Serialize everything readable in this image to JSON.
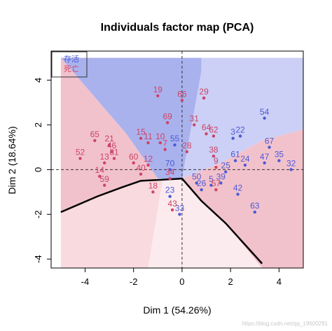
{
  "chart_data": {
    "type": "scatter",
    "title": "Individuals factor map (PCA)",
    "xlabel": "Dim 1 (54.26%)",
    "ylabel": "Dim 2 (18.64%)",
    "xlim": [
      -5.4,
      5.0
    ],
    "ylim": [
      -4.4,
      5.3
    ],
    "x_ticks": [
      -4,
      -2,
      0,
      2,
      4
    ],
    "y_ticks": [
      -4,
      -2,
      0,
      2,
      4
    ],
    "grid": false,
    "reference_lines": {
      "x": 0,
      "y": 0,
      "style": "dashed"
    },
    "legend": {
      "placement": "top-left",
      "entries": [
        {
          "label": "存活",
          "color": "#4a5ad6"
        },
        {
          "label": "死亡",
          "color": "#cc4466"
        }
      ]
    },
    "decision_boundary": {
      "color": "#000000",
      "points": [
        [
          -5.0,
          -1.9
        ],
        [
          -3.5,
          -1.2
        ],
        [
          -2.5,
          -0.8
        ],
        [
          -1.7,
          -0.5
        ],
        [
          -0.8,
          -0.45
        ],
        [
          0.0,
          -0.4
        ],
        [
          0.8,
          -1.4
        ],
        [
          1.8,
          -2.4
        ],
        [
          3.3,
          -4.2
        ]
      ]
    },
    "background_regions": [
      {
        "name": "region-blue-top",
        "color": "#aab2ee",
        "points": [
          [
            -5.0,
            5.0
          ],
          [
            0.8,
            5.0
          ],
          [
            0.8,
            4.4
          ],
          [
            0.0,
            -0.4
          ],
          [
            -1.0,
            -0.4
          ],
          [
            -2.3,
            1.6
          ]
        ]
      },
      {
        "name": "region-blue-right",
        "color": "#ccd0f6",
        "points": [
          [
            0.8,
            5.0
          ],
          [
            5.0,
            5.0
          ],
          [
            5.0,
            1.8
          ],
          [
            3.3,
            1.3
          ],
          [
            1.6,
            0.3
          ],
          [
            0.0,
            -0.4
          ],
          [
            0.8,
            4.4
          ]
        ]
      },
      {
        "name": "region-red-left",
        "color": "#f2c2cc",
        "points": [
          [
            -5.0,
            5.0
          ],
          [
            -2.3,
            1.6
          ],
          [
            -1.0,
            -0.4
          ],
          [
            -2.5,
            -0.8
          ],
          [
            -3.5,
            -1.2
          ],
          [
            -5.0,
            -1.9
          ]
        ]
      },
      {
        "name": "region-red-right",
        "color": "#f2c2cc",
        "points": [
          [
            0.0,
            -0.4
          ],
          [
            1.6,
            0.3
          ],
          [
            3.3,
            1.3
          ],
          [
            5.0,
            1.8
          ],
          [
            5.0,
            -4.5
          ],
          [
            3.3,
            -4.5
          ]
        ]
      },
      {
        "name": "region-pink-bottom-left",
        "color": "#f8dadf",
        "points": [
          [
            -5.0,
            -1.9
          ],
          [
            -3.5,
            -1.2
          ],
          [
            -2.5,
            -0.8
          ],
          [
            -1.7,
            -0.5
          ],
          [
            -0.8,
            -0.45
          ],
          [
            -1.4,
            -4.5
          ],
          [
            -5.0,
            -4.5
          ]
        ]
      },
      {
        "name": "region-lightpink-bottom",
        "color": "#fcebee",
        "points": [
          [
            -0.8,
            -0.45
          ],
          [
            0.0,
            -0.4
          ],
          [
            0.8,
            -1.4
          ],
          [
            1.8,
            -2.4
          ],
          [
            3.3,
            -4.5
          ],
          [
            -1.4,
            -4.5
          ]
        ]
      }
    ],
    "series": [
      {
        "name": "存活",
        "color": "#4a5ad6",
        "points": [
          {
            "label": "54",
            "x": 3.4,
            "y": 2.3
          },
          {
            "label": "3",
            "x": 2.1,
            "y": 1.4
          },
          {
            "label": "22",
            "x": 2.4,
            "y": 1.5
          },
          {
            "label": "67",
            "x": 3.6,
            "y": 1.0
          },
          {
            "label": "47",
            "x": 3.4,
            "y": 0.3
          },
          {
            "label": "35",
            "x": 4.0,
            "y": 0.4
          },
          {
            "label": "32",
            "x": 4.5,
            "y": 0.0
          },
          {
            "label": "61",
            "x": 2.2,
            "y": 0.4
          },
          {
            "label": "24",
            "x": 2.6,
            "y": 0.2
          },
          {
            "label": "25",
            "x": 1.8,
            "y": -0.1
          },
          {
            "label": "39",
            "x": 1.6,
            "y": -0.6
          },
          {
            "label": "42",
            "x": 2.3,
            "y": -1.1
          },
          {
            "label": "63",
            "x": 3.0,
            "y": -1.9
          },
          {
            "label": "50",
            "x": 0.6,
            "y": -0.6
          },
          {
            "label": "26",
            "x": 0.8,
            "y": -0.9
          },
          {
            "label": "23",
            "x": -0.5,
            "y": -1.2
          },
          {
            "label": "33",
            "x": -0.1,
            "y": -2.0
          },
          {
            "label": "70",
            "x": -0.5,
            "y": 0.0
          },
          {
            "label": "55",
            "x": -0.3,
            "y": 1.1
          },
          {
            "label": "5",
            "x": 1.2,
            "y": -0.7
          }
        ]
      },
      {
        "name": "死亡",
        "color": "#cc4466",
        "points": [
          {
            "label": "19",
            "x": -1.0,
            "y": 3.3
          },
          {
            "label": "66",
            "x": 0.0,
            "y": 3.1
          },
          {
            "label": "29",
            "x": 0.9,
            "y": 3.2
          },
          {
            "label": "69",
            "x": -0.6,
            "y": 2.1
          },
          {
            "label": "31",
            "x": 0.5,
            "y": 2.0
          },
          {
            "label": "64",
            "x": 1.0,
            "y": 1.6
          },
          {
            "label": "62",
            "x": 1.3,
            "y": 1.5
          },
          {
            "label": "65",
            "x": -3.6,
            "y": 1.3
          },
          {
            "label": "21",
            "x": -3.0,
            "y": 1.1
          },
          {
            "label": "15",
            "x": -1.7,
            "y": 1.4
          },
          {
            "label": "11",
            "x": -1.4,
            "y": 1.2
          },
          {
            "label": "10",
            "x": -0.9,
            "y": 1.2
          },
          {
            "label": "46",
            "x": -2.9,
            "y": 0.8
          },
          {
            "label": "81",
            "x": -2.8,
            "y": 0.5
          },
          {
            "label": "52",
            "x": -4.2,
            "y": 0.5
          },
          {
            "label": "13",
            "x": -3.2,
            "y": 0.3
          },
          {
            "label": "60",
            "x": -2.0,
            "y": 0.3
          },
          {
            "label": "12",
            "x": -1.4,
            "y": 0.2
          },
          {
            "label": "40",
            "x": -1.7,
            "y": -0.2
          },
          {
            "label": "14",
            "x": -3.4,
            "y": -0.3
          },
          {
            "label": "59",
            "x": -3.2,
            "y": -0.7
          },
          {
            "label": "18",
            "x": -1.2,
            "y": -1.0
          },
          {
            "label": "43",
            "x": -0.4,
            "y": -1.8
          },
          {
            "label": "34",
            "x": -0.5,
            "y": -0.4
          },
          {
            "label": "28",
            "x": 0.2,
            "y": 0.8
          },
          {
            "label": "7",
            "x": -0.7,
            "y": 0.9
          },
          {
            "label": "9",
            "x": 1.4,
            "y": 0.1
          },
          {
            "label": "57",
            "x": 1.4,
            "y": -0.9
          },
          {
            "label": "38",
            "x": 1.3,
            "y": 0.6
          }
        ]
      }
    ],
    "watermark": "https://blog.csdn.net/qq_19600291"
  }
}
